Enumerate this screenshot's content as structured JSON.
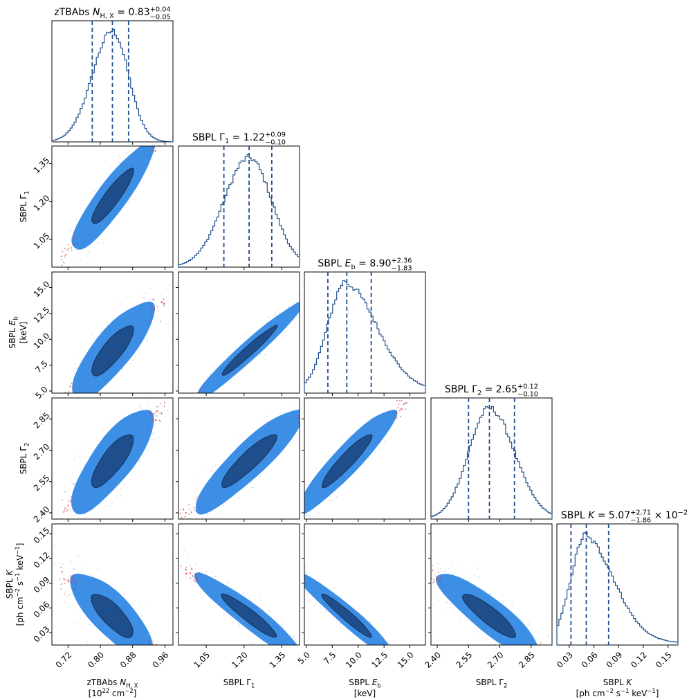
{
  "chart_data": {
    "type": "corner",
    "colors": {
      "hist_line": "#1f4e8c",
      "quantile_line": "#1f4e8c",
      "contour_inner": "#1f4e8c",
      "contour_outer": "#3d8fe6",
      "scatter_halo": "#c9dcf4",
      "outlier_points": "#e0302e"
    },
    "quantile_style": "dashed",
    "parameters": [
      {
        "id": "nh",
        "axis_label": "zTBAbs N_H,X",
        "axis_unit": "[10^22 cm^-2]",
        "title": "zTBAbs N_H,X = 0.83 +0.04 -0.05",
        "title_parts": {
          "prefix": "zTBAbs ",
          "symbol": "N",
          "sub": "H, X",
          "value": " = 0.83",
          "sup": "+0.04",
          "inf": "−0.05",
          "suffix": ""
        },
        "range": [
          0.68,
          0.98
        ],
        "ticks": [
          "0.72",
          "0.80",
          "0.88",
          "0.96"
        ],
        "median": 0.83,
        "q16": 0.78,
        "q84": 0.87,
        "sigma": 0.045
      },
      {
        "id": "g1",
        "axis_label": "SBPL Γ_1",
        "axis_unit": "",
        "title": "SBPL Γ_1 = 1.22 +0.09 -0.10",
        "title_parts": {
          "prefix": "SBPL ",
          "symbol": "Γ",
          "sub": "1",
          "value": " = 1.22",
          "sup": "+0.09",
          "inf": "−0.10",
          "suffix": ""
        },
        "range": [
          0.94,
          1.42
        ],
        "ticks": [
          "1.05",
          "1.20",
          "1.35"
        ],
        "median": 1.22,
        "q16": 1.12,
        "q84": 1.31,
        "sigma": 0.095
      },
      {
        "id": "eb",
        "axis_label": "SBPL E_b",
        "axis_unit": "[keV]",
        "title": "SBPL E_b = 8.90 +2.36 -1.83",
        "title_parts": {
          "prefix": "SBPL ",
          "symbol": "E",
          "sub": "b",
          "value": " = 8.90",
          "sup": "+2.36",
          "inf": "−1.83",
          "suffix": ""
        },
        "range": [
          4.8,
          16.5
        ],
        "ticks": [
          "5.0",
          "7.5",
          "10.0",
          "12.5",
          "15.0"
        ],
        "median": 8.9,
        "q16": 7.07,
        "q84": 11.26,
        "sigma": 2.1
      },
      {
        "id": "g2",
        "axis_label": "SBPL Γ_2",
        "axis_unit": "",
        "title": "SBPL Γ_2 = 2.65 +0.12 -0.10",
        "title_parts": {
          "prefix": "SBPL ",
          "symbol": "Γ",
          "sub": "2",
          "value": " = 2.65",
          "sup": "+0.12",
          "inf": "−0.10",
          "suffix": ""
        },
        "range": [
          2.37,
          2.95
        ],
        "ticks": [
          "2.40",
          "2.55",
          "2.70",
          "2.85"
        ],
        "median": 2.65,
        "q16": 2.55,
        "q84": 2.77,
        "sigma": 0.11
      },
      {
        "id": "k",
        "axis_label": "SBPL K",
        "axis_unit": "[ph cm^-2 s^-1 keV^-1]",
        "title": "SBPL K = 5.07 +2.71 -1.86 ×10^-2",
        "title_parts": {
          "prefix": "SBPL ",
          "symbol": "K",
          "sub": "",
          "value": " = 5.07",
          "sup": "+2.71",
          "inf": "−1.86",
          "suffix": " × 10",
          "suffix_sup": "−2"
        },
        "range": [
          0.015,
          0.162
        ],
        "ticks": [
          "0.03",
          "0.06",
          "0.09",
          "0.12",
          "0.15"
        ],
        "median": 0.0507,
        "q16": 0.0321,
        "q84": 0.0778,
        "sigma": 0.022
      }
    ],
    "axis_text": {
      "nh_x_label": [
        "zTBAbs ",
        "N",
        "H, X"
      ],
      "nh_x_unit": [
        "[10",
        "22",
        " cm",
        "−2",
        "]"
      ],
      "g1_label": [
        "SBPL Γ",
        "1"
      ],
      "eb_label": [
        "SBPL ",
        "E",
        "b"
      ],
      "eb_unit": "[keV]",
      "g2_label": [
        "SBPL Γ",
        "2"
      ],
      "k_label": [
        "SBPL ",
        "K"
      ],
      "k_unit": [
        "[ph cm",
        "−2",
        " s",
        "−1",
        " keV",
        "−1",
        "]"
      ]
    }
  }
}
